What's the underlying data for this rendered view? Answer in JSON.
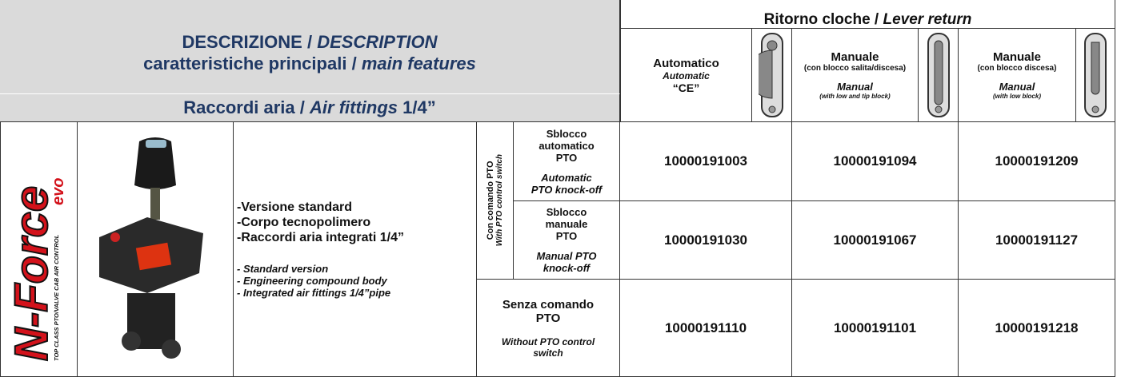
{
  "header": {
    "description_it": "DESCRIZIONE",
    "separator": "/",
    "description_en": "DESCRIPTION",
    "features_it": "caratteristiche principali",
    "features_en": "main features",
    "fittings_it": "Raccordi aria",
    "fittings_en": "Air fittings",
    "fittings_size": "1/4”"
  },
  "lever_return": {
    "title_it": "Ritorno cloche",
    "title_en": "Lever return",
    "columns": [
      {
        "name": "Automatico",
        "en": "Automatic",
        "note": "“CE”"
      },
      {
        "name": "Manuale",
        "sub": "(con blocco salita/discesa)",
        "en": "Manual",
        "en_sub": "(with low and tip block)"
      },
      {
        "name": "Manuale",
        "sub": "(con blocco discesa)",
        "en": "Manual",
        "en_sub": "(with low block)"
      }
    ]
  },
  "product": {
    "logo": "N-Force",
    "logo_suffix": "evo",
    "logo_tagline": "TOP CLASS PTO/VALVE CAB AIR CONTROL",
    "features_it": [
      "-Versione standard",
      "-Corpo tecnopolimero",
      "-Raccordi aria integrati 1/4”"
    ],
    "features_en": [
      "- Standard version",
      "- Engineering compound body",
      "- Integrated air fittings 1/4”pipe"
    ]
  },
  "control_group": {
    "it": "Con comando PTO",
    "en": "With PTO control switch"
  },
  "rows": [
    {
      "label_it": "Sblocco automatico PTO",
      "label_en": "Automatic PTO knock-off",
      "codes": [
        "10000191003",
        "10000191094",
        "10000191209"
      ]
    },
    {
      "label_it": "Sblocco manuale PTO",
      "label_en": "Manual PTO knock-off",
      "codes": [
        "10000191030",
        "10000191067",
        "10000191127"
      ]
    },
    {
      "label_it": "Senza comando PTO",
      "label_en": "Without PTO control switch",
      "codes": [
        "10000191110",
        "10000191101",
        "10000191218"
      ]
    }
  ]
}
